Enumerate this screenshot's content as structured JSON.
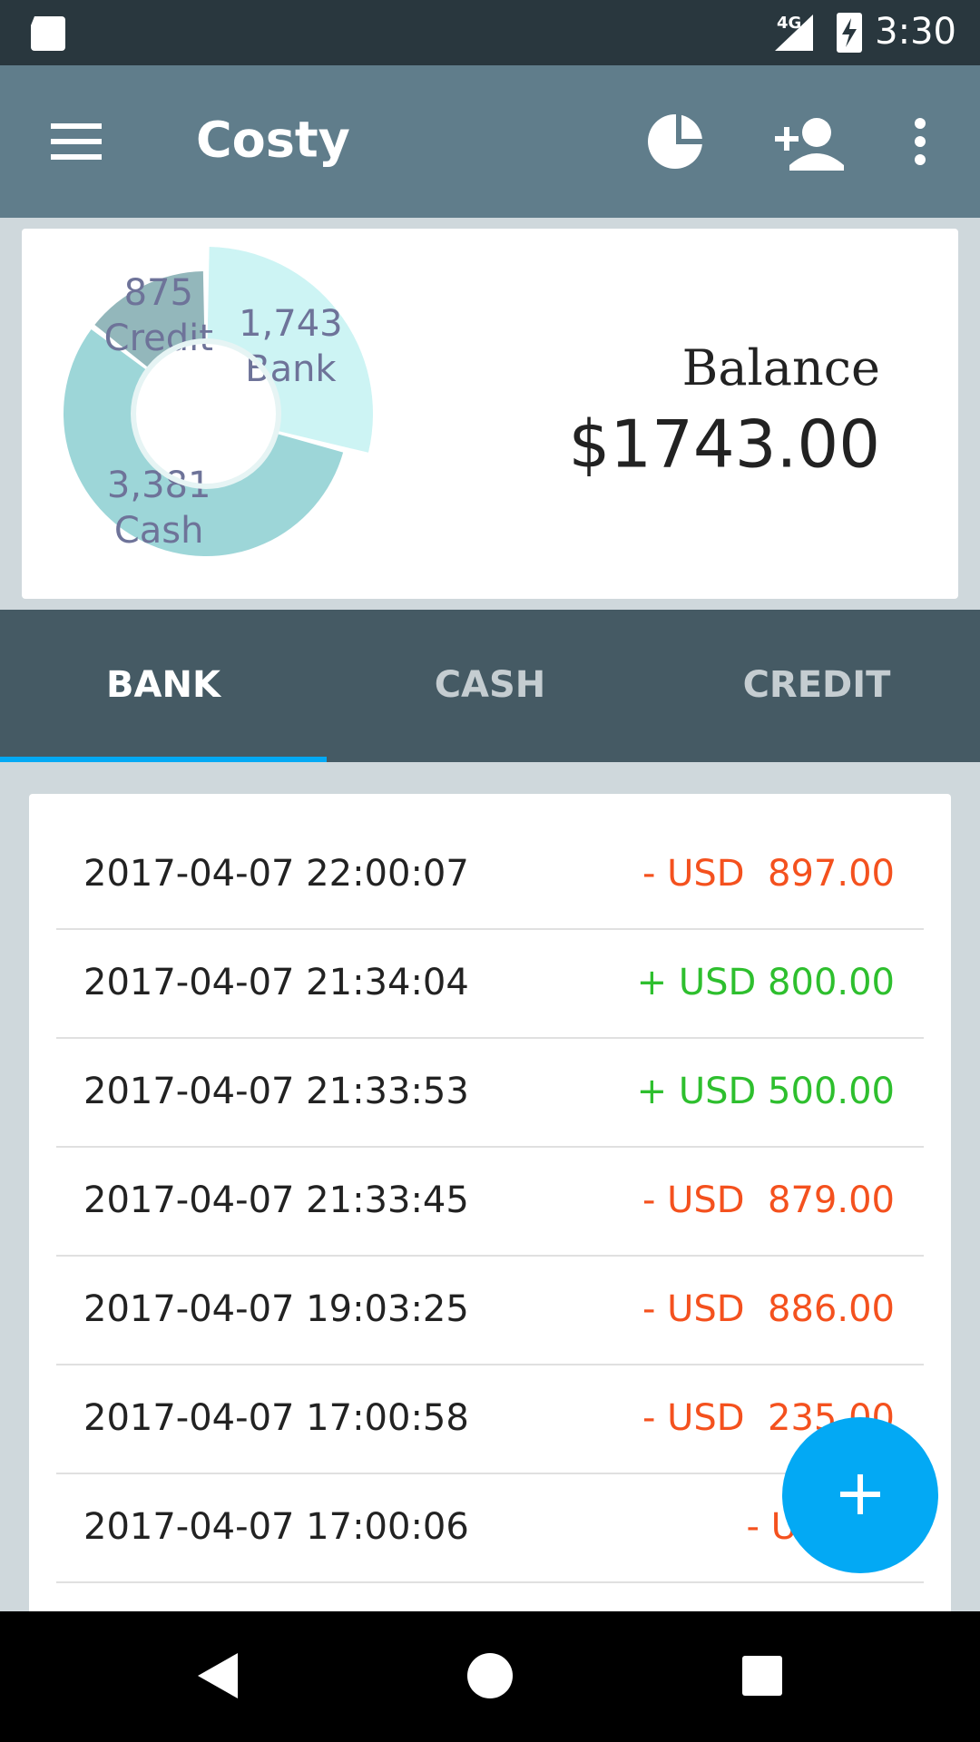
{
  "status_bar": {
    "network": "4G",
    "time": "3:30"
  },
  "app_bar": {
    "title": "Costy"
  },
  "summary": {
    "donut": {
      "type": "pie",
      "categories": [
        "Bank",
        "Cash",
        "Credit"
      ],
      "values": [
        1743,
        3381,
        875
      ],
      "value_labels": [
        "1,743",
        "3,381",
        "875"
      ],
      "colors": [
        "#cdf4f4",
        "#9dd6d8",
        "#93b7bb"
      ],
      "exploded": 0
    },
    "balance_label": "Balance",
    "balance": "$1743.00"
  },
  "tabs": {
    "items": [
      "BANK",
      "CASH",
      "CREDIT"
    ],
    "selected": 0
  },
  "transactions": {
    "rows": [
      {
        "time": "2017-04-07 22:00:07",
        "amount": "- USD  897.00",
        "color": "#f4511e"
      },
      {
        "time": "2017-04-07 21:34:04",
        "amount": "+ USD 800.00",
        "color": "#2ebf2e"
      },
      {
        "time": "2017-04-07 21:33:53",
        "amount": "+ USD 500.00",
        "color": "#2ebf2e"
      },
      {
        "time": "2017-04-07 21:33:45",
        "amount": "- USD  879.00",
        "color": "#f4511e"
      },
      {
        "time": "2017-04-07 19:03:25",
        "amount": "- USD  886.00",
        "color": "#f4511e"
      },
      {
        "time": "2017-04-07 17:00:58",
        "amount": "- USD  235.00",
        "color": "#f4511e"
      },
      {
        "time": "2017-04-07 17:00:06",
        "amount": "- USD  1",
        "color": "#f4511e"
      }
    ]
  }
}
